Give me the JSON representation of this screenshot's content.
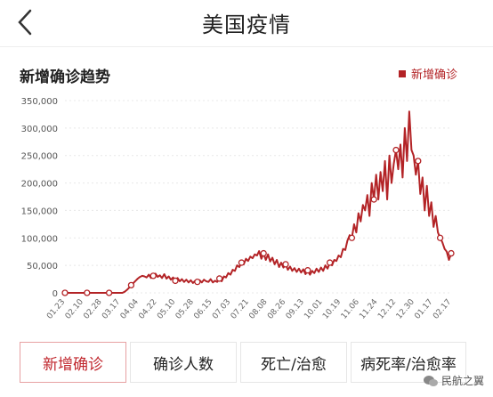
{
  "header": {
    "title": "美国疫情"
  },
  "section": {
    "title": "新增确诊趋势",
    "legend": "新增确诊"
  },
  "tabs": [
    {
      "label": "新增确诊",
      "active": true
    },
    {
      "label": "确诊人数",
      "active": false
    },
    {
      "label": "死亡/治愈",
      "active": false
    },
    {
      "label": "病死率/治愈率",
      "active": false
    }
  ],
  "watermark": "民航之翼",
  "colors": {
    "accent": "#b32326",
    "active_border": "#e7a1a3"
  },
  "chart_data": {
    "type": "line",
    "title": "",
    "series": [
      {
        "name": "新增确诊",
        "values": [
          [
            0,
            0
          ],
          [
            2,
            0
          ],
          [
            4,
            0
          ],
          [
            6,
            0
          ],
          [
            8,
            0
          ],
          [
            10,
            0
          ],
          [
            12,
            0
          ],
          [
            14,
            0
          ],
          [
            16,
            0
          ],
          [
            18,
            0
          ],
          [
            20,
            0
          ],
          [
            22,
            0
          ],
          [
            24,
            0
          ],
          [
            26,
            0
          ],
          [
            28,
            0
          ],
          [
            30,
            0
          ],
          [
            32,
            0
          ],
          [
            34,
            0
          ],
          [
            36,
            0
          ],
          [
            38,
            0
          ],
          [
            40,
            0
          ],
          [
            42,
            0
          ],
          [
            44,
            0
          ],
          [
            46,
            0
          ],
          [
            48,
            0
          ],
          [
            50,
            0
          ],
          [
            52,
            0
          ],
          [
            54,
            2000
          ],
          [
            56,
            5000
          ],
          [
            58,
            9000
          ],
          [
            60,
            14000
          ],
          [
            62,
            18000
          ],
          [
            64,
            22000
          ],
          [
            66,
            26000
          ],
          [
            68,
            29000
          ],
          [
            70,
            31000
          ],
          [
            72,
            30000
          ],
          [
            74,
            28000
          ],
          [
            76,
            33000
          ],
          [
            78,
            27000
          ],
          [
            80,
            31000
          ],
          [
            82,
            35000
          ],
          [
            84,
            29000
          ],
          [
            86,
            32000
          ],
          [
            88,
            27000
          ],
          [
            90,
            34000
          ],
          [
            92,
            26000
          ],
          [
            94,
            30000
          ],
          [
            96,
            24000
          ],
          [
            98,
            28000
          ],
          [
            100,
            22000
          ],
          [
            102,
            27000
          ],
          [
            104,
            21000
          ],
          [
            106,
            25000
          ],
          [
            108,
            20000
          ],
          [
            110,
            24000
          ],
          [
            112,
            19000
          ],
          [
            114,
            23000
          ],
          [
            116,
            18000
          ],
          [
            118,
            22000
          ],
          [
            120,
            20000
          ],
          [
            122,
            23000
          ],
          [
            124,
            19000
          ],
          [
            126,
            24000
          ],
          [
            128,
            21000
          ],
          [
            130,
            20000
          ],
          [
            132,
            25000
          ],
          [
            134,
            19000
          ],
          [
            136,
            22000
          ],
          [
            138,
            20000
          ],
          [
            140,
            26000
          ],
          [
            142,
            21000
          ],
          [
            144,
            30000
          ],
          [
            146,
            28000
          ],
          [
            148,
            36000
          ],
          [
            150,
            33000
          ],
          [
            152,
            42000
          ],
          [
            154,
            40000
          ],
          [
            156,
            50000
          ],
          [
            158,
            47000
          ],
          [
            160,
            55000
          ],
          [
            162,
            52000
          ],
          [
            164,
            62000
          ],
          [
            166,
            58000
          ],
          [
            168,
            66000
          ],
          [
            170,
            63000
          ],
          [
            172,
            70000
          ],
          [
            174,
            68000
          ],
          [
            176,
            76000
          ],
          [
            178,
            62000
          ],
          [
            180,
            72000
          ],
          [
            182,
            60000
          ],
          [
            184,
            70000
          ],
          [
            186,
            57000
          ],
          [
            188,
            64000
          ],
          [
            190,
            52000
          ],
          [
            192,
            60000
          ],
          [
            194,
            47000
          ],
          [
            196,
            55000
          ],
          [
            198,
            46000
          ],
          [
            200,
            52000
          ],
          [
            202,
            42000
          ],
          [
            204,
            48000
          ],
          [
            206,
            40000
          ],
          [
            208,
            45000
          ],
          [
            210,
            38000
          ],
          [
            212,
            44000
          ],
          [
            214,
            37000
          ],
          [
            216,
            43000
          ],
          [
            218,
            34000
          ],
          [
            220,
            41000
          ],
          [
            222,
            33000
          ],
          [
            224,
            40000
          ],
          [
            226,
            36000
          ],
          [
            228,
            44000
          ],
          [
            230,
            38000
          ],
          [
            232,
            46000
          ],
          [
            234,
            40000
          ],
          [
            236,
            50000
          ],
          [
            238,
            44000
          ],
          [
            240,
            55000
          ],
          [
            242,
            50000
          ],
          [
            244,
            60000
          ],
          [
            246,
            58000
          ],
          [
            248,
            68000
          ],
          [
            250,
            65000
          ],
          [
            252,
            80000
          ],
          [
            254,
            78000
          ],
          [
            256,
            95000
          ],
          [
            258,
            105000
          ],
          [
            260,
            100000
          ],
          [
            262,
            125000
          ],
          [
            264,
            110000
          ],
          [
            266,
            145000
          ],
          [
            268,
            130000
          ],
          [
            270,
            160000
          ],
          [
            272,
            150000
          ],
          [
            274,
            178000
          ],
          [
            276,
            140000
          ],
          [
            278,
            200000
          ],
          [
            280,
            170000
          ],
          [
            282,
            215000
          ],
          [
            284,
            170000
          ],
          [
            286,
            220000
          ],
          [
            288,
            185000
          ],
          [
            290,
            240000
          ],
          [
            292,
            170000
          ],
          [
            294,
            250000
          ],
          [
            296,
            200000
          ],
          [
            298,
            235000
          ],
          [
            300,
            260000
          ],
          [
            302,
            225000
          ],
          [
            304,
            270000
          ],
          [
            306,
            210000
          ],
          [
            308,
            300000
          ],
          [
            310,
            240000
          ],
          [
            312,
            330000
          ],
          [
            314,
            260000
          ],
          [
            316,
            250000
          ],
          [
            318,
            215000
          ],
          [
            320,
            240000
          ],
          [
            322,
            180000
          ],
          [
            324,
            210000
          ],
          [
            326,
            150000
          ],
          [
            328,
            195000
          ],
          [
            330,
            140000
          ],
          [
            332,
            165000
          ],
          [
            334,
            120000
          ],
          [
            336,
            140000
          ],
          [
            338,
            110000
          ],
          [
            340,
            100000
          ],
          [
            342,
            92000
          ],
          [
            344,
            80000
          ],
          [
            346,
            75000
          ],
          [
            348,
            60000
          ],
          [
            350,
            72000
          ]
        ]
      }
    ],
    "x_ticks": [
      "01.23",
      "02.10",
      "02.28",
      "03.17",
      "04.04",
      "04.22",
      "05.10",
      "05.28",
      "06.15",
      "07.03",
      "07.21",
      "08.08",
      "08.26",
      "09.13",
      "10.01",
      "10.19",
      "11.06",
      "11.24",
      "12.12",
      "12.30",
      "01.17",
      "02.17"
    ],
    "y_ticks": [
      "0",
      "50,000",
      "100,000",
      "150,000",
      "200,000",
      "250,000",
      "300,000",
      "350,000"
    ],
    "ylim": [
      0,
      350000
    ],
    "xlim": [
      0,
      350
    ],
    "grid": true,
    "markers": [
      0,
      20,
      40,
      60,
      80,
      100,
      120,
      140,
      160,
      180,
      200,
      220,
      240,
      260,
      280,
      300,
      320,
      340,
      350
    ]
  }
}
